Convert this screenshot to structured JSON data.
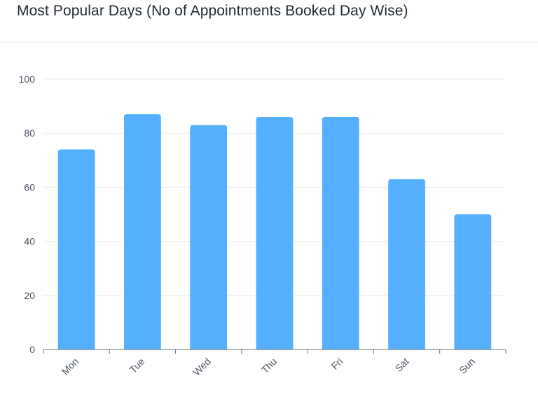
{
  "title": "Most Popular Days (No of Appointments Booked Day Wise)",
  "chart_data": {
    "type": "bar",
    "categories": [
      "Mon",
      "Tue",
      "Wed",
      "Thu",
      "Fri",
      "Sat",
      "Sun"
    ],
    "values": [
      74,
      87,
      83,
      86,
      86,
      63,
      50
    ],
    "ylim": [
      0,
      100
    ],
    "yticks": [
      0,
      20,
      40,
      60,
      80,
      100
    ],
    "grid": true,
    "bar_color": "#54b0ff",
    "grid_color": "#e9ecf2",
    "axis_color": "#6b7280"
  }
}
